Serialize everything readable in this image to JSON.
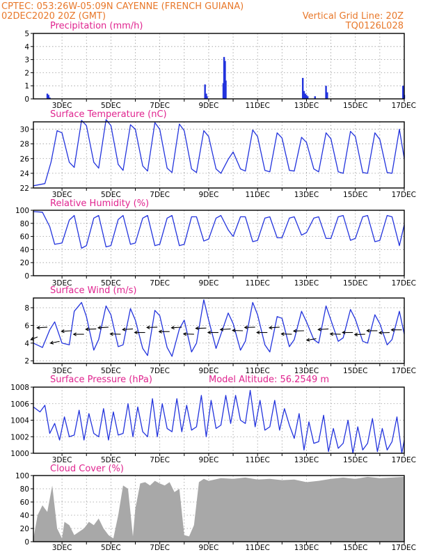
{
  "header": {
    "line1": "CPTEC:   053:26W-05:09N   CAYENNE (FRENCH GUIANA)",
    "line2_left": "02DEC2020 20Z (GMT)",
    "line2_right": "Vertical Grid Line: 20Z",
    "line3_right": "TQ0126L028"
  },
  "colors": {
    "header": "#e8782a",
    "panel_title": "#e0248f",
    "line": "#2233dd",
    "bars": "#2233dd",
    "cloud": "#a8a8a8",
    "arrows": "#000000"
  },
  "x_axis": {
    "labels": [
      "3DEC",
      "5DEC",
      "7DEC",
      "9DEC",
      "11DEC",
      "13DEC",
      "15DEC",
      "17DEC"
    ]
  },
  "chart_data": [
    {
      "id": "precip",
      "type": "bar",
      "title": "Precipitation (mm/h)",
      "ylim": [
        0,
        5
      ],
      "yticks": [
        "0",
        "1",
        "2",
        "3",
        "4",
        "5"
      ],
      "x": [
        2.4,
        2.45,
        2.5,
        8.85,
        8.9,
        8.93,
        9.6,
        9.63,
        9.67,
        9.7,
        12.85,
        12.9,
        12.95,
        13.0,
        13.05,
        13.35,
        13.8,
        13.85,
        16.95,
        17.0
      ],
      "values": [
        0.4,
        0.3,
        0.1,
        1.1,
        0.4,
        0.2,
        1.2,
        3.2,
        2.9,
        1.4,
        1.6,
        0.6,
        0.4,
        0.3,
        0.2,
        0.2,
        1.0,
        0.5,
        1.0,
        0.3
      ]
    },
    {
      "id": "temp",
      "type": "line",
      "title": "Surface Temperature (nC)",
      "ylim": [
        22,
        31
      ],
      "yticks": [
        "22",
        "24",
        "26",
        "28",
        "30"
      ],
      "x": [
        1.83,
        2.3,
        2.55,
        2.8,
        3.0,
        3.3,
        3.5,
        3.8,
        4.0,
        4.3,
        4.5,
        4.8,
        5.0,
        5.3,
        5.5,
        5.8,
        6.0,
        6.3,
        6.5,
        6.8,
        7.0,
        7.3,
        7.5,
        7.8,
        8.0,
        8.3,
        8.5,
        8.8,
        9.0,
        9.3,
        9.5,
        9.8,
        10.0,
        10.3,
        10.5,
        10.8,
        11.0,
        11.3,
        11.5,
        11.8,
        12.0,
        12.3,
        12.5,
        12.8,
        13.0,
        13.3,
        13.5,
        13.8,
        14.0,
        14.3,
        14.5,
        14.8,
        15.0,
        15.3,
        15.5,
        15.8,
        16.0,
        16.3,
        16.5,
        16.8,
        17.0
      ],
      "values": [
        22.3,
        22.6,
        25.5,
        29.8,
        29.5,
        25.5,
        24.8,
        31.2,
        30.5,
        25.5,
        24.7,
        31.3,
        30.5,
        25.2,
        24.4,
        30.6,
        30.0,
        25.0,
        24.3,
        30.9,
        30.0,
        24.7,
        24.1,
        30.7,
        29.8,
        24.6,
        24.1,
        29.8,
        29.0,
        24.6,
        24.0,
        25.9,
        26.9,
        24.6,
        24.3,
        29.9,
        29.0,
        24.4,
        24.2,
        29.5,
        28.8,
        24.4,
        24.3,
        28.9,
        28.2,
        24.6,
        24.2,
        29.5,
        28.7,
        24.2,
        24.0,
        29.7,
        29.0,
        24.1,
        24.0,
        29.5,
        28.6,
        24.1,
        24.0,
        30.0,
        26.0
      ]
    },
    {
      "id": "rh",
      "type": "line",
      "title": "Relative Humidity (%)",
      "ylim": [
        0,
        100
      ],
      "yticks": [
        "0",
        "20",
        "40",
        "60",
        "80",
        "100"
      ],
      "x": [
        1.83,
        2.2,
        2.5,
        2.7,
        3.0,
        3.3,
        3.5,
        3.8,
        4.0,
        4.3,
        4.5,
        4.8,
        5.0,
        5.3,
        5.5,
        5.8,
        6.0,
        6.3,
        6.5,
        6.8,
        7.0,
        7.3,
        7.5,
        7.8,
        8.0,
        8.3,
        8.5,
        8.8,
        9.0,
        9.3,
        9.5,
        9.8,
        10.0,
        10.3,
        10.5,
        10.8,
        11.0,
        11.3,
        11.5,
        11.8,
        12.0,
        12.3,
        12.5,
        12.8,
        13.0,
        13.3,
        13.5,
        13.8,
        14.0,
        14.3,
        14.5,
        14.8,
        15.0,
        15.3,
        15.5,
        15.8,
        16.0,
        16.3,
        16.5,
        16.8,
        17.0
      ],
      "values": [
        98,
        97,
        75,
        48,
        50,
        85,
        92,
        42,
        46,
        88,
        92,
        44,
        46,
        86,
        92,
        48,
        50,
        88,
        92,
        46,
        48,
        88,
        92,
        46,
        48,
        90,
        90,
        53,
        56,
        88,
        92,
        70,
        60,
        90,
        90,
        52,
        54,
        88,
        90,
        58,
        58,
        88,
        90,
        62,
        66,
        88,
        90,
        57,
        57,
        90,
        92,
        54,
        57,
        90,
        92,
        52,
        54,
        92,
        90,
        46,
        78
      ]
    },
    {
      "id": "wind",
      "type": "line",
      "title": "Surface Wind (m/s)",
      "ylim": [
        1.7,
        9.1
      ],
      "yticks": [
        "2",
        "4",
        "6",
        "8"
      ],
      "x": [
        1.83,
        2.2,
        2.5,
        2.7,
        3.0,
        3.3,
        3.5,
        3.8,
        4.0,
        4.3,
        4.5,
        4.8,
        5.0,
        5.3,
        5.5,
        5.8,
        6.0,
        6.3,
        6.5,
        6.8,
        7.0,
        7.3,
        7.5,
        7.8,
        8.0,
        8.3,
        8.5,
        8.8,
        9.0,
        9.3,
        9.5,
        9.8,
        10.0,
        10.3,
        10.5,
        10.8,
        11.0,
        11.3,
        11.5,
        11.8,
        12.0,
        12.3,
        12.5,
        12.8,
        13.0,
        13.3,
        13.5,
        13.8,
        14.0,
        14.3,
        14.5,
        14.8,
        15.0,
        15.3,
        15.5,
        15.8,
        16.0,
        16.3,
        16.5,
        16.8,
        17.0
      ],
      "values": [
        4.0,
        3.5,
        5.5,
        6.4,
        4.0,
        3.8,
        7.6,
        8.6,
        7.0,
        3.2,
        4.4,
        8.2,
        7.2,
        3.6,
        3.8,
        7.9,
        6.6,
        3.4,
        2.6,
        7.7,
        7.1,
        3.5,
        2.5,
        5.6,
        6.6,
        3.0,
        4.0,
        8.9,
        6.6,
        3.4,
        5.0,
        7.4,
        6.2,
        3.2,
        4.2,
        8.6,
        7.2,
        3.8,
        3.0,
        7.0,
        6.8,
        3.6,
        4.4,
        7.6,
        6.4,
        4.4,
        4.0,
        8.2,
        6.6,
        4.2,
        4.6,
        7.8,
        6.7,
        4.2,
        4.0,
        7.2,
        6.2,
        3.8,
        4.4,
        7.6,
        5.0
      ],
      "barb_x": [
        2.0,
        2.4,
        2.9,
        3.4,
        3.9,
        4.4,
        4.9,
        5.4,
        5.9,
        6.4,
        6.9,
        7.4,
        7.9,
        8.4,
        8.9,
        9.4,
        9.9,
        10.4,
        10.9,
        11.4,
        11.9,
        12.4,
        12.9,
        13.4,
        13.9,
        14.4,
        14.9,
        15.4,
        15.9,
        16.4,
        16.9
      ],
      "barb_speed": [
        4.7,
        5.8,
        4.2,
        5.4,
        5.0,
        5.6,
        5.8,
        5.0,
        5.6,
        5.2,
        5.8,
        5.3,
        5.8,
        5.0,
        5.7,
        5.2,
        5.6,
        5.4,
        5.8,
        5.2,
        5.8,
        5.0,
        5.4,
        4.5,
        5.6,
        5.0,
        5.2,
        5.0,
        5.4,
        5.2,
        5.5
      ],
      "barb_direction_deg": [
        40,
        80,
        60,
        80,
        90,
        85,
        80,
        95,
        80,
        90,
        85,
        90,
        80,
        95,
        85,
        90,
        80,
        95,
        85,
        90,
        80,
        95,
        85,
        65,
        80,
        95,
        90,
        85,
        90,
        85,
        90
      ]
    },
    {
      "id": "pressure",
      "type": "line",
      "title": "Surface Pressure (hPa)",
      "annotation": "Model Altitude: 56.2549  m",
      "ylim": [
        1000,
        1008
      ],
      "yticks": [
        "1000",
        "1002",
        "1004",
        "1006",
        "1008"
      ],
      "x": [
        1.83,
        2.1,
        2.3,
        2.5,
        2.7,
        2.9,
        3.1,
        3.3,
        3.5,
        3.7,
        3.9,
        4.1,
        4.3,
        4.5,
        4.7,
        4.9,
        5.1,
        5.3,
        5.5,
        5.7,
        5.9,
        6.1,
        6.3,
        6.5,
        6.7,
        6.9,
        7.1,
        7.3,
        7.5,
        7.7,
        7.9,
        8.1,
        8.3,
        8.5,
        8.7,
        8.9,
        9.1,
        9.3,
        9.5,
        9.7,
        9.9,
        10.1,
        10.3,
        10.5,
        10.7,
        10.9,
        11.1,
        11.3,
        11.5,
        11.7,
        11.9,
        12.1,
        12.3,
        12.5,
        12.7,
        12.9,
        13.1,
        13.3,
        13.5,
        13.7,
        13.9,
        14.1,
        14.3,
        14.5,
        14.7,
        14.9,
        15.1,
        15.3,
        15.5,
        15.7,
        15.9,
        16.1,
        16.3,
        16.5,
        16.7,
        16.9,
        17.0
      ],
      "values": [
        1005.6,
        1005.0,
        1005.8,
        1002.4,
        1003.6,
        1001.6,
        1004.4,
        1002.0,
        1002.2,
        1005.2,
        1001.6,
        1004.8,
        1002.4,
        1002.0,
        1005.4,
        1001.6,
        1005.0,
        1002.2,
        1002.4,
        1006.0,
        1002.0,
        1005.6,
        1002.6,
        1002.0,
        1006.6,
        1002.0,
        1006.0,
        1003.0,
        1002.6,
        1006.6,
        1002.6,
        1005.8,
        1002.8,
        1003.2,
        1007.0,
        1002.0,
        1006.4,
        1003.0,
        1003.4,
        1007.0,
        1003.6,
        1007.0,
        1004.0,
        1003.6,
        1007.6,
        1003.2,
        1006.4,
        1002.8,
        1003.2,
        1006.4,
        1002.8,
        1005.4,
        1003.4,
        1001.8,
        1004.8,
        1000.4,
        1003.8,
        1001.2,
        1001.4,
        1004.6,
        1000.2,
        1003.0,
        1000.6,
        1001.2,
        1004.0,
        1000.0,
        1003.2,
        1000.4,
        1001.2,
        1004.2,
        1000.2,
        1003.0,
        1000.4,
        1001.4,
        1004.4,
        1000.0,
        1001.6
      ]
    },
    {
      "id": "cloud",
      "type": "area",
      "title": "Cloud Cover (%)",
      "ylim": [
        0,
        100
      ],
      "yticks": [
        "0",
        "20",
        "40",
        "60",
        "80",
        "100"
      ],
      "x": [
        1.83,
        2.0,
        2.2,
        2.4,
        2.6,
        2.8,
        3.0,
        3.1,
        3.3,
        3.5,
        3.7,
        3.9,
        4.1,
        4.3,
        4.5,
        4.7,
        4.9,
        5.1,
        5.3,
        5.5,
        5.7,
        5.9,
        6.0,
        6.2,
        6.4,
        6.6,
        6.8,
        7.0,
        7.2,
        7.4,
        7.6,
        7.8,
        8.0,
        8.2,
        8.4,
        8.6,
        8.8,
        9.0,
        9.5,
        10.0,
        10.5,
        11.0,
        11.5,
        12.0,
        12.5,
        13.0,
        13.5,
        14.0,
        14.5,
        15.0,
        15.5,
        16.0,
        16.5,
        17.0
      ],
      "values": [
        5,
        40,
        55,
        45,
        85,
        20,
        5,
        30,
        25,
        10,
        15,
        20,
        30,
        25,
        35,
        20,
        10,
        5,
        40,
        85,
        80,
        8,
        50,
        88,
        90,
        85,
        92,
        88,
        85,
        90,
        75,
        80,
        10,
        8,
        25,
        90,
        95,
        92,
        96,
        95,
        97,
        94,
        95,
        93,
        94,
        90,
        92,
        95,
        97,
        95,
        98,
        96,
        97,
        98
      ]
    }
  ]
}
